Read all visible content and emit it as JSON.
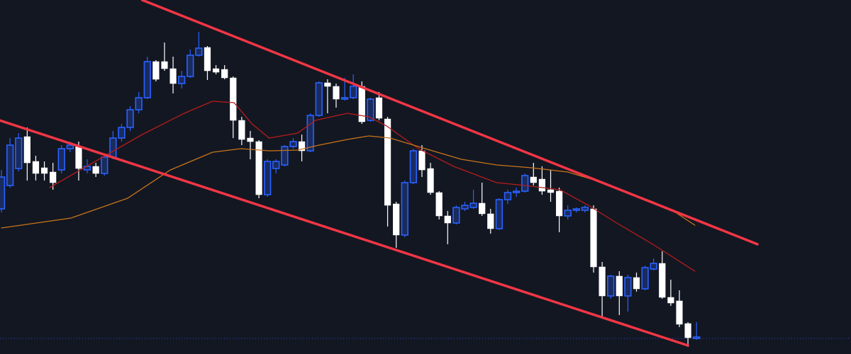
{
  "chart_data": {
    "type": "candlestick",
    "xlim": [
      -0.17,
      99.0
    ],
    "ylim": [
      0,
      500
    ],
    "up_color": "#2962ff",
    "down_color": "#ffffff",
    "open": [
      205,
      238,
      262,
      307,
      272,
      263,
      257,
      260,
      290,
      293,
      260,
      265,
      255,
      278,
      305,
      320,
      345,
      362,
      413,
      413,
      403,
      382,
      392,
      422,
      433,
      403,
      402,
      390,
      330,
      305,
      300,
      225,
      262,
      267,
      293,
      300,
      287,
      337,
      383,
      378,
      360,
      362,
      378,
      330,
      362,
      332,
      212,
      168,
      242,
      287,
      262,
      228,
      195,
      185,
      205,
      207,
      213,
      198,
      177,
      218,
      228,
      230,
      250,
      247,
      232,
      230,
      195,
      203,
      203,
      205,
      123,
      82,
      110,
      82,
      108,
      92,
      120,
      128,
      80,
      75,
      43,
      22
    ],
    "high": [
      260,
      305,
      312,
      320,
      280,
      272,
      270,
      295,
      300,
      300,
      275,
      270,
      280,
      315,
      325,
      350,
      370,
      420,
      415,
      440,
      420,
      400,
      430,
      455,
      435,
      408,
      408,
      392,
      335,
      315,
      302,
      275,
      275,
      295,
      305,
      310,
      340,
      385,
      388,
      382,
      390,
      395,
      385,
      362,
      370,
      335,
      215,
      245,
      290,
      295,
      270,
      230,
      202,
      210,
      215,
      232,
      242,
      205,
      220,
      232,
      235,
      255,
      270,
      265,
      260,
      235,
      210,
      207,
      210,
      210,
      130,
      112,
      117,
      112,
      115,
      125,
      135,
      145,
      105,
      90,
      45,
      45
    ],
    "low": [
      200,
      235,
      258,
      245,
      245,
      245,
      232,
      255,
      285,
      245,
      255,
      250,
      252,
      275,
      300,
      315,
      340,
      360,
      385,
      400,
      368,
      375,
      390,
      420,
      387,
      395,
      388,
      305,
      295,
      275,
      220,
      222,
      255,
      265,
      290,
      272,
      285,
      335,
      340,
      348,
      358,
      360,
      325,
      328,
      330,
      180,
      150,
      165,
      240,
      250,
      225,
      190,
      155,
      183,
      202,
      205,
      195,
      170,
      175,
      212,
      222,
      228,
      238,
      225,
      215,
      172,
      190,
      200,
      200,
      115,
      52,
      78,
      55,
      60,
      88,
      90,
      118,
      78,
      68,
      38,
      10,
      20
    ],
    "close": [
      250,
      295,
      305,
      270,
      255,
      255,
      242,
      290,
      295,
      262,
      265,
      255,
      278,
      305,
      320,
      345,
      362,
      413,
      388,
      403,
      382,
      392,
      422,
      432,
      400,
      398,
      390,
      330,
      303,
      300,
      225,
      272,
      272,
      293,
      300,
      287,
      337,
      383,
      378,
      360,
      362,
      378,
      328,
      360,
      333,
      210,
      168,
      242,
      287,
      260,
      228,
      195,
      185,
      207,
      210,
      213,
      198,
      177,
      218,
      228,
      230,
      252,
      242,
      230,
      228,
      195,
      203,
      205,
      207,
      123,
      82,
      110,
      82,
      108,
      92,
      122,
      128,
      80,
      72,
      42,
      23,
      24
    ],
    "lines": [
      {
        "color": "#b71c1c",
        "width": 1.3,
        "x": [
          5.6,
          16.4,
          21.3,
          24.6,
          27.1,
          29.2,
          31.2,
          34.5,
          36.6,
          40.3,
          42.8,
          44.9,
          48.6,
          52.7,
          57.7,
          61,
          65.1,
          68.4,
          71.7,
          75.9,
          80.8
        ],
        "values": [
          235,
          310,
          340,
          357,
          355,
          325,
          305,
          312,
          330,
          340,
          335,
          322,
          290,
          265,
          242,
          238,
          232,
          210,
          185,
          155,
          117
        ]
      },
      {
        "color": "#c8741a",
        "width": 1.3,
        "x": [
          0,
          8.1,
          14.7,
          19.7,
          24.6,
          27.9,
          31.2,
          34.5,
          37,
          40.3,
          42.8,
          45.3,
          49.4,
          53.6,
          57.7,
          61.8,
          66,
          69.3,
          72.6,
          75.9,
          78.3,
          80.8
        ],
        "values": [
          178,
          192,
          220,
          260,
          285,
          290,
          287,
          288,
          295,
          303,
          308,
          305,
          290,
          275,
          267,
          263,
          257,
          245,
          230,
          215,
          202,
          182
        ]
      },
      {
        "color": "#f23645",
        "width": 3.5,
        "x": [
          16.4,
          88.1
        ],
        "values": [
          500,
          155
        ]
      },
      {
        "color": "#f23645",
        "width": 3.5,
        "x": [
          -0.2,
          80
        ],
        "values": [
          330,
          12
        ]
      }
    ],
    "price_line": 22,
    "price_line_color": "#2962ff"
  }
}
